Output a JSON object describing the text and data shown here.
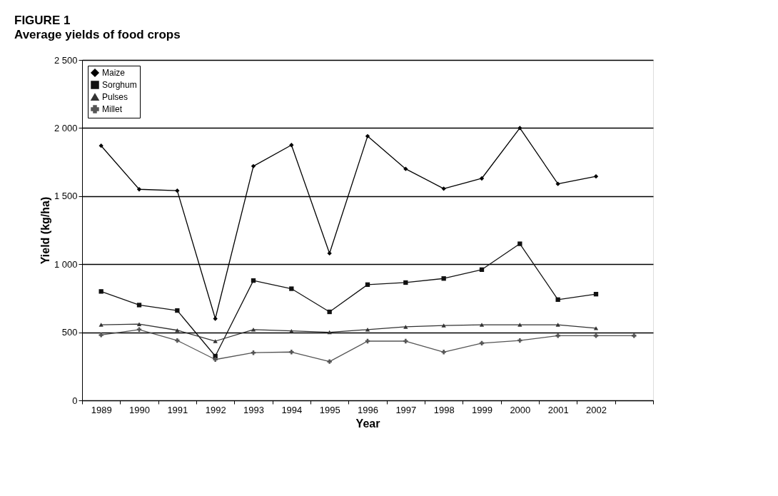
{
  "chart_data": {
    "type": "line",
    "title": "FIGURE 1",
    "subtitle": "Average yields of food crops",
    "xlabel": "Year",
    "ylabel": "Yield (kg/ha)",
    "categories": [
      "1989",
      "1990",
      "1991",
      "1992",
      "1993",
      "1994",
      "1995",
      "1996",
      "1997",
      "1998",
      "1999",
      "2000",
      "2001",
      "2002",
      null
    ],
    "series": [
      {
        "name": "Maize",
        "color": "#000000",
        "marker": "diamond",
        "values": [
          1870,
          1550,
          1540,
          600,
          1720,
          1875,
          1080,
          1940,
          1700,
          1555,
          1630,
          2000,
          1590,
          1645,
          null
        ]
      },
      {
        "name": "Sorghum",
        "color": "#111111",
        "marker": "square",
        "values": [
          800,
          700,
          660,
          325,
          880,
          820,
          650,
          850,
          865,
          895,
          960,
          1150,
          740,
          780,
          null
        ]
      },
      {
        "name": "Pulses",
        "color": "#333333",
        "marker": "triangle",
        "values": [
          555,
          560,
          515,
          435,
          520,
          510,
          500,
          520,
          540,
          550,
          555,
          555,
          555,
          530,
          null
        ]
      },
      {
        "name": "Millet",
        "color": "#555555",
        "marker": "cross",
        "values": [
          480,
          520,
          440,
          300,
          350,
          355,
          285,
          435,
          435,
          355,
          420,
          440,
          475,
          475,
          475
        ]
      }
    ],
    "ylim": [
      0,
      2500
    ],
    "yticks": [
      0,
      500,
      {
        "value": 1000,
        "label": "1 000"
      },
      {
        "value": 1500,
        "label": "1 500"
      },
      {
        "value": 2000,
        "label": "2 000"
      },
      {
        "value": 2500,
        "label": "2 500"
      }
    ],
    "grid": "y",
    "legend": "top left"
  }
}
